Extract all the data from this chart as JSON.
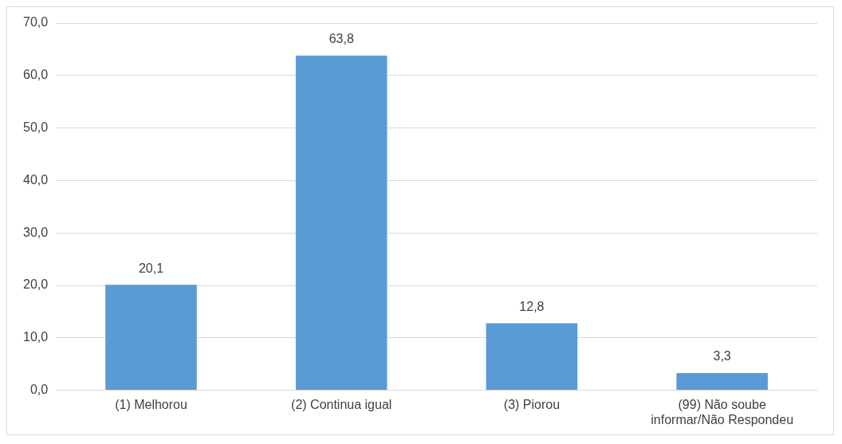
{
  "chart_data": {
    "type": "bar",
    "categories": [
      "(1) Melhorou",
      "(2) Continua igual",
      "(3) Piorou",
      "(99) Não soube informar/Não Respondeu"
    ],
    "values": [
      20.1,
      63.8,
      12.8,
      3.3
    ],
    "value_labels": [
      "20,1",
      "63,8",
      "12,8",
      "3,3"
    ],
    "color": "#5b9bd5",
    "ylim": [
      0,
      70
    ],
    "yticks": [
      {
        "value": 0,
        "label": "0,0"
      },
      {
        "value": 10,
        "label": "10,0"
      },
      {
        "value": 20,
        "label": "20,0"
      },
      {
        "value": 30,
        "label": "30,0"
      },
      {
        "value": 40,
        "label": "40,0"
      },
      {
        "value": 50,
        "label": "50,0"
      },
      {
        "value": 60,
        "label": "60,0"
      },
      {
        "value": 70,
        "label": "70,0"
      }
    ],
    "grid": "y",
    "legend": false
  }
}
